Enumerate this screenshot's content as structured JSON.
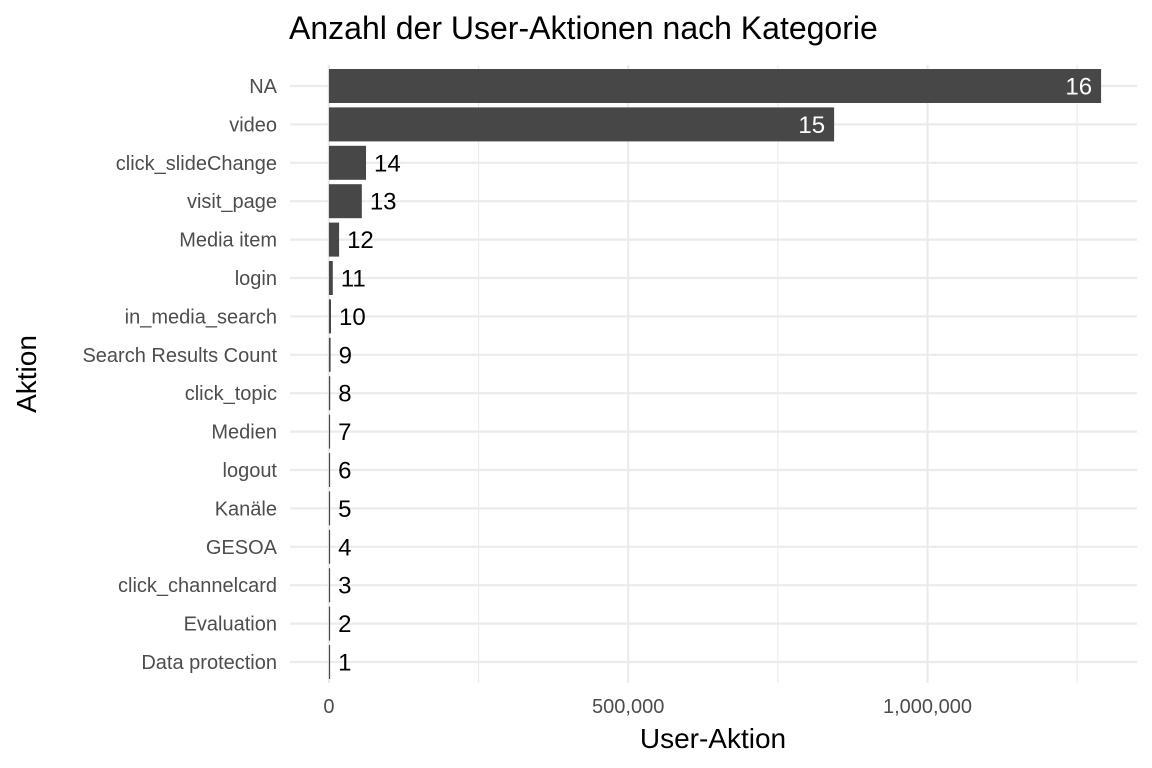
{
  "chart_data": {
    "type": "bar",
    "orientation": "horizontal",
    "title": "Anzahl der User-Aktionen nach Kategorie",
    "xlabel": "User-Aktion",
    "ylabel": "Aktion",
    "categories": [
      "NA",
      "video",
      "click_slideChange",
      "visit_page",
      "Media item",
      "login",
      "in_media_search",
      "Search Results Count",
      "click_topic",
      "Medien",
      "logout",
      "Kanäle",
      "GESOA",
      "click_channelcard",
      "Evaluation",
      "Data protection"
    ],
    "values": [
      1290000,
      844000,
      62000,
      55000,
      17000,
      6500,
      3500,
      2800,
      2200,
      1600,
      1300,
      1100,
      900,
      600,
      300,
      150
    ],
    "labels": [
      "16",
      "15",
      "14",
      "13",
      "12",
      "11",
      "10",
      "9",
      "8",
      "7",
      "6",
      "5",
      "4",
      "3",
      "2",
      "1"
    ],
    "xlim": [
      -65000,
      1350000
    ],
    "x_ticks": [
      0,
      500000,
      1000000
    ],
    "x_tick_labels": [
      "0",
      "500,000",
      "1,000,000"
    ],
    "grid": true,
    "bar_color": "#474747",
    "grid_color": "#ebebeb",
    "label_inside_color": "#ffffff",
    "label_outside_color": "#000000"
  }
}
